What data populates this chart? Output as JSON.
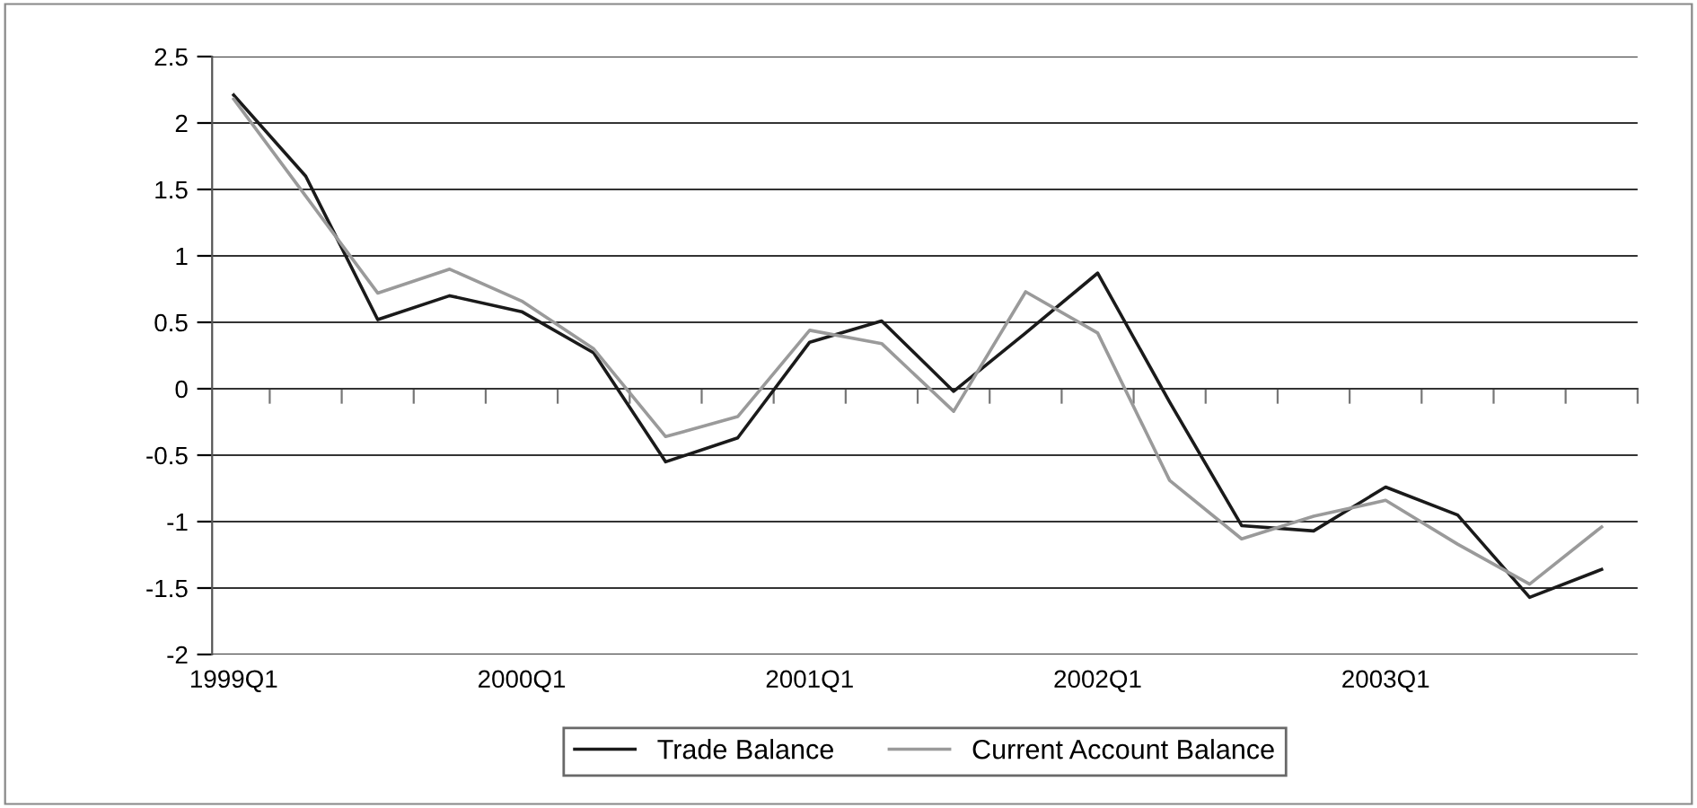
{
  "chart_data": {
    "type": "line",
    "categories": [
      "1999Q1",
      null,
      null,
      null,
      "2000Q1",
      null,
      null,
      null,
      "2001Q1",
      null,
      null,
      null,
      "2002Q1",
      null,
      null,
      null,
      "2003Q1",
      null,
      null,
      null
    ],
    "series": [
      {
        "name": "Trade Balance",
        "color": "#1a1a1a",
        "values": [
          2.21,
          1.6,
          0.52,
          0.7,
          0.58,
          0.27,
          -0.55,
          -0.37,
          0.35,
          0.51,
          -0.02,
          0.42,
          0.87,
          -0.1,
          -1.03,
          -1.07,
          -0.74,
          -0.95,
          -1.57,
          -1.36
        ]
      },
      {
        "name": "Current Account Balance",
        "color": "#9a9a9a",
        "values": [
          2.18,
          1.45,
          0.72,
          0.9,
          0.66,
          0.3,
          -0.36,
          -0.21,
          0.44,
          0.34,
          -0.17,
          0.73,
          0.42,
          -0.69,
          -1.13,
          -0.96,
          -0.84,
          -1.17,
          -1.47,
          -1.04
        ]
      }
    ],
    "ylim": [
      -2,
      2.5
    ],
    "yticks": [
      -2,
      -1.5,
      -1,
      -0.5,
      0,
      0.5,
      1,
      1.5,
      2,
      2.5
    ],
    "grid": "y",
    "legend": "bottom",
    "marker": "none",
    "line_style": "solid"
  }
}
